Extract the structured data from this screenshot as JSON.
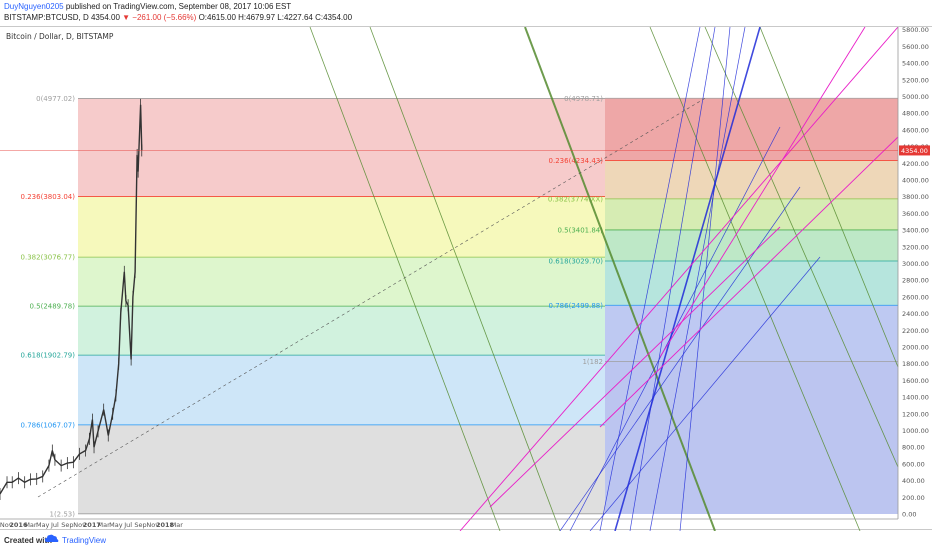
{
  "header": {
    "username": "DuyNguyen0205",
    "published": "published on TradingView.com, September 08, 2017 10:06 EST",
    "symbol": "BITSTAMP:BTCUSD, D",
    "price": "4354.00",
    "change": "▼ −261.00 (−5.66%)",
    "ohlc": "O:4615.00 H:4679.97 L:4227.64 C:4354.00"
  },
  "chart_title": "Bitcoin / Dollar, D, BITSTAMP",
  "footer": {
    "created": "Created with",
    "brand": "TradingView"
  },
  "colors": {
    "candle": "#333333",
    "fib_0_236": "#f44336",
    "fib_0_382": "#8bc34a",
    "fib_0_5": "#4caf50",
    "fib_0_618": "#26a69a",
    "fib_0_786": "#2196f3",
    "fib_1": "#9e9e9e",
    "trend": "#558b2f",
    "fan": "#1e2ad8",
    "magenta": "#e91ec8",
    "price_label": "#e53935"
  },
  "chart_data": {
    "type": "candlestick",
    "title": "Bitcoin / Dollar, D, BITSTAMP",
    "last_price": "4354.00",
    "y_ticks": [
      "5800.00",
      "5600.00",
      "5400.00",
      "5200.00",
      "5000.00",
      "4800.00",
      "4600.00",
      "4400.00",
      "4200.00",
      "4000.00",
      "3800.00",
      "3600.00",
      "3400.00",
      "3200.00",
      "3000.00",
      "2800.00",
      "2600.00",
      "2400.00",
      "2200.00",
      "2000.00",
      "1800.00",
      "1600.00",
      "1400.00",
      "1200.00",
      "1000.00",
      "800.00",
      "600.00",
      "400.00",
      "200.00",
      "0.00"
    ],
    "x_ticks": [
      "Nov",
      "2016",
      "Mar",
      "May",
      "Jul",
      "Sep",
      "Nov",
      "2017",
      "Mar",
      "May",
      "Jul",
      "Sep",
      "Nov",
      "2018",
      "Mar"
    ],
    "fib_large": {
      "labels": [
        "0(4977.02)",
        "0.236(3803.04)",
        "0.382(3076.77)",
        "0.5(2489.78)",
        "0.618(1902.79)",
        "0.786(1067.07)",
        "1(2.53)"
      ],
      "levels": [
        4977.02,
        3803.04,
        3076.77,
        2489.78,
        1902.79,
        1067.07,
        2.53
      ]
    },
    "fib_small": {
      "labels": [
        "0(4978.71)",
        "0.236(4234.43)",
        "0.382(3774.XX)",
        "0.5(3401.84)",
        "0.618(3029.70)",
        "0.786(2499.88)",
        "1(182"
      ],
      "levels": [
        4978.71,
        4234.43,
        3774.0,
        3401.84,
        3029.7,
        2499.88,
        1825
      ]
    },
    "price_series": [
      {
        "t": "2015-10-01",
        "p": 240
      },
      {
        "t": "2015-11-05",
        "p": 380
      },
      {
        "t": "2015-12-01",
        "p": 380
      },
      {
        "t": "2016-01-01",
        "p": 430
      },
      {
        "t": "2016-02-01",
        "p": 380
      },
      {
        "t": "2016-03-01",
        "p": 415
      },
      {
        "t": "2016-04-01",
        "p": 420
      },
      {
        "t": "2016-05-01",
        "p": 450
      },
      {
        "t": "2016-06-01",
        "p": 580
      },
      {
        "t": "2016-06-18",
        "p": 760
      },
      {
        "t": "2016-07-01",
        "p": 650
      },
      {
        "t": "2016-08-01",
        "p": 580
      },
      {
        "t": "2016-09-01",
        "p": 610
      },
      {
        "t": "2016-10-01",
        "p": 620
      },
      {
        "t": "2016-11-01",
        "p": 720
      },
      {
        "t": "2016-12-01",
        "p": 760
      },
      {
        "t": "2016-12-20",
        "p": 900
      },
      {
        "t": "2017-01-04",
        "p": 1130
      },
      {
        "t": "2017-01-12",
        "p": 800
      },
      {
        "t": "2017-02-01",
        "p": 990
      },
      {
        "t": "2017-03-01",
        "p": 1250
      },
      {
        "t": "2017-03-24",
        "p": 940
      },
      {
        "t": "2017-04-15",
        "p": 1200
      },
      {
        "t": "2017-05-01",
        "p": 1420
      },
      {
        "t": "2017-05-15",
        "p": 1800
      },
      {
        "t": "2017-05-25",
        "p": 2400
      },
      {
        "t": "2017-06-12",
        "p": 2900
      },
      {
        "t": "2017-06-20",
        "p": 2550
      },
      {
        "t": "2017-07-01",
        "p": 2500
      },
      {
        "t": "2017-07-16",
        "p": 1850
      },
      {
        "t": "2017-07-25",
        "p": 2600
      },
      {
        "t": "2017-08-05",
        "p": 2900
      },
      {
        "t": "2017-08-15",
        "p": 4300
      },
      {
        "t": "2017-08-20",
        "p": 4100
      },
      {
        "t": "2017-09-01",
        "p": 4900
      },
      {
        "t": "2017-09-07",
        "p": 4354
      }
    ]
  }
}
